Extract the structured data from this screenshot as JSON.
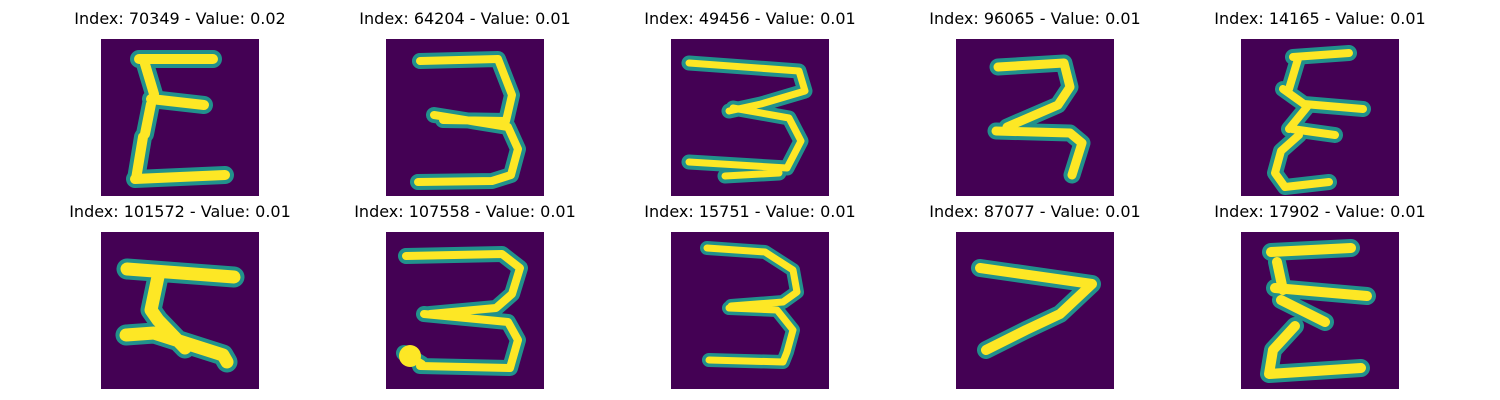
{
  "panels": [
    {
      "title": "Index: 70349 - Value: 0.02",
      "glyph": "Σ"
    },
    {
      "title": "Index: 64204 - Value: 0.01",
      "glyph": "3"
    },
    {
      "title": "Index: 49456 - Value: 0.01",
      "glyph": "3"
    },
    {
      "title": "Index: 96065 - Value: 0.01",
      "glyph": "ℸ"
    },
    {
      "title": "Index: 14165 - Value: 0.01",
      "glyph": "Ɛ"
    },
    {
      "title": "Index: 101572 - Value: 0.01",
      "glyph": "ℸ"
    },
    {
      "title": "Index: 107558 - Value: 0.01",
      "glyph": "3"
    },
    {
      "title": "Index: 15751 - Value: 0.01",
      "glyph": "3"
    },
    {
      "title": "Index: 87077 - Value: 0.01",
      "glyph": "ℸ"
    },
    {
      "title": "Index: 17902 - Value: 0.01",
      "glyph": "Ɛ"
    }
  ],
  "colors": {
    "background": "#440154",
    "foreground": "#fde725",
    "edge": "#21918c"
  }
}
